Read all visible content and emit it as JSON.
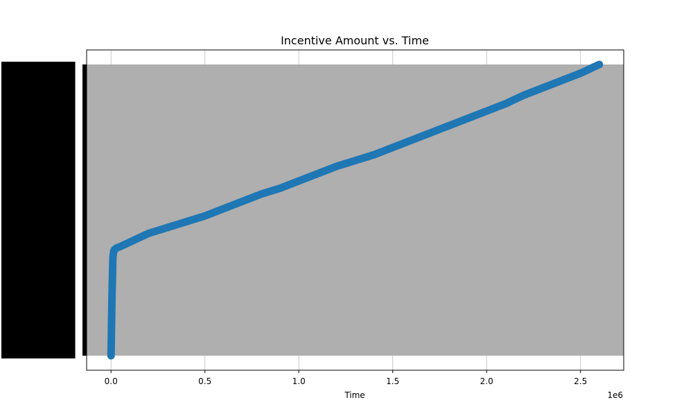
{
  "chart_data": {
    "type": "scatter",
    "title": "Incentive Amount vs. Time",
    "xlabel": "Time",
    "ylabel": "",
    "x_offset_label": "1e6",
    "xlim": [
      -0.13,
      2.73
    ],
    "ylim": [
      -0.05,
      1.05
    ],
    "x_ticks": [
      0.0,
      0.5,
      1.0,
      1.5,
      2.0,
      2.5
    ],
    "x_tick_labels": [
      "0.0",
      "0.5",
      "1.0",
      "1.5",
      "2.0",
      "2.5"
    ],
    "grid": true,
    "y_tick_labels_illegible": true,
    "series": [
      {
        "color": "#1f77b4",
        "x": [
          0.0,
          0.005,
          0.01,
          0.015,
          0.02,
          0.03,
          0.05,
          0.1,
          0.2,
          0.3,
          0.4,
          0.5,
          0.6,
          0.7,
          0.8,
          0.9,
          1.0,
          1.1,
          1.2,
          1.3,
          1.4,
          1.5,
          1.6,
          1.7,
          1.8,
          1.9,
          2.0,
          2.1,
          2.2,
          2.3,
          2.4,
          2.5,
          2.6
        ],
        "y": [
          0.0,
          0.2,
          0.34,
          0.36,
          0.365,
          0.37,
          0.375,
          0.39,
          0.42,
          0.44,
          0.46,
          0.48,
          0.505,
          0.53,
          0.555,
          0.575,
          0.6,
          0.625,
          0.65,
          0.67,
          0.69,
          0.715,
          0.74,
          0.765,
          0.79,
          0.815,
          0.84,
          0.865,
          0.895,
          0.92,
          0.945,
          0.97,
          1.0
        ]
      }
    ]
  },
  "colors": {
    "plot_background": "#afafaf",
    "series": "#1f77b4",
    "grid": "#c8c8c8"
  }
}
